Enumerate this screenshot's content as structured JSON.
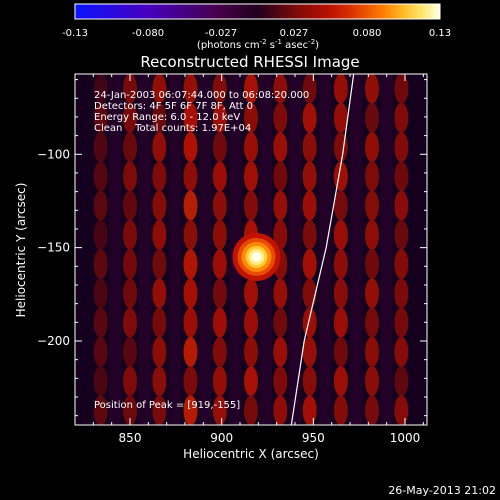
{
  "chart_data": {
    "type": "heatmap",
    "title": "Reconstructed RHESSI Image",
    "xlabel": "Heliocentric X (arcsec)",
    "ylabel": "Heliocentric Y (arcsec)",
    "xlim": [
      820,
      1012
    ],
    "ylim": [
      -245,
      -57
    ],
    "xticks": [
      850,
      900,
      950,
      1000
    ],
    "yticks": [
      -100,
      -150,
      -200
    ],
    "colorbar": {
      "range": [
        -0.13,
        0.13
      ],
      "ticks": [
        "-0.13",
        "-0.080",
        "-0.027",
        "0.027",
        "0.080",
        "0.13"
      ],
      "unit_label": "(photons cm",
      "unit_sup1": "-2",
      "unit_mid": " s",
      "unit_sup2": "-1",
      "unit_tail": " asec",
      "unit_sup3": "-2",
      "unit_close": ")"
    },
    "annotations": [
      "24-Jan-2003 06:07:44.000 to 06:08:20.000",
      "Detectors: 4F 5F 6F 7F 8F, Att 0",
      "Energy Range: 6.0 - 12.0 keV",
      "Clean    Total counts: 1.97E+04"
    ],
    "peak_label": "Position of Peak = [919,-155]",
    "peak": {
      "x": 919,
      "y": -155,
      "value": 0.13
    },
    "limb_curve": [
      [
        972,
        -57
      ],
      [
        966,
        -100
      ],
      [
        957,
        -150
      ],
      [
        945,
        -200
      ],
      [
        938,
        -245
      ]
    ],
    "stripes": [
      {
        "x": 834,
        "amp": 0.022
      },
      {
        "x": 850,
        "amp": 0.036
      },
      {
        "x": 866,
        "amp": 0.045
      },
      {
        "x": 883,
        "amp": 0.062
      },
      {
        "x": 899,
        "amp": 0.05
      },
      {
        "x": 916,
        "amp": 0.055
      },
      {
        "x": 932,
        "amp": 0.048
      },
      {
        "x": 948,
        "amp": 0.052
      },
      {
        "x": 965,
        "amp": 0.05
      },
      {
        "x": 982,
        "amp": 0.045
      },
      {
        "x": 998,
        "amp": 0.04
      }
    ],
    "grid": false
  },
  "footer_timestamp": "26-May-2013 21:02"
}
